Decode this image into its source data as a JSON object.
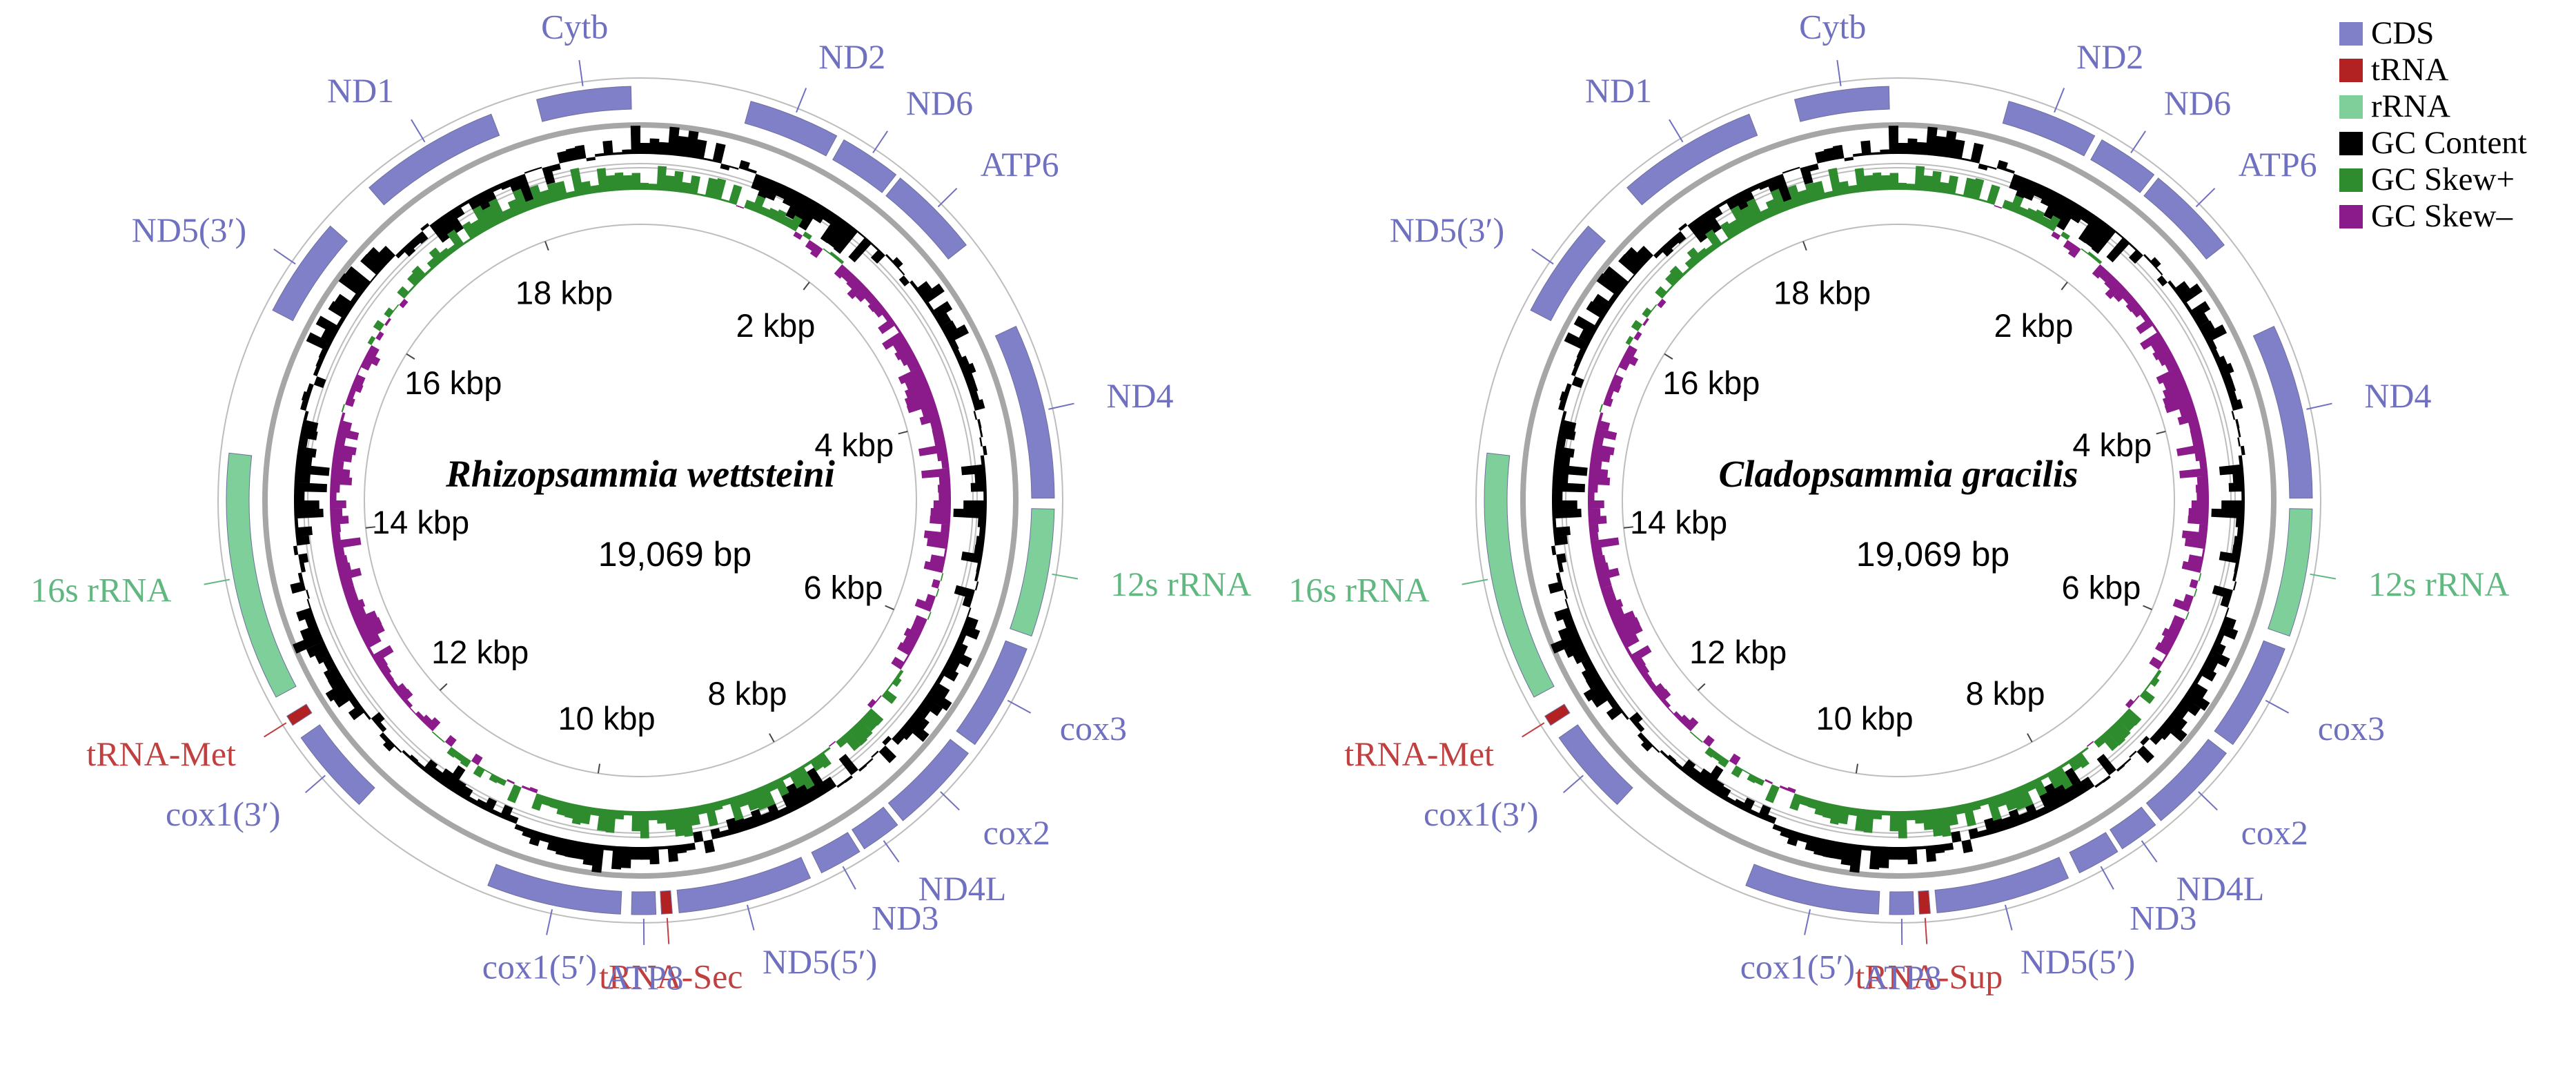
{
  "colors": {
    "cds": "#8080c8",
    "trna": "#b22222",
    "rrna": "#7fcf9a",
    "gc_content": "#000000",
    "gc_skew_pos": "#2e8b2e",
    "gc_skew_neg": "#8b1a8b",
    "ring": "#a6a6a6",
    "label_cds": "#7070c0",
    "label_trna": "#c04040",
    "label_rrna": "#60b880"
  },
  "legend": [
    {
      "label": "CDS",
      "color_key": "cds"
    },
    {
      "label": "tRNA",
      "color_key": "trna"
    },
    {
      "label": "rRNA",
      "color_key": "rrna"
    },
    {
      "label": "GC Content",
      "color_key": "gc_content"
    },
    {
      "label": "GC Skew+",
      "color_key": "gc_skew_pos"
    },
    {
      "label": "GC Skew–",
      "color_key": "gc_skew_neg"
    }
  ],
  "tick_labels": [
    "2 kbp",
    "4 kbp",
    "6 kbp",
    "8 kbp",
    "10 kbp",
    "12 kbp",
    "14 kbp",
    "16 kbp",
    "18 kbp"
  ],
  "maps": [
    {
      "species": "Rhizopsammia wettsteini",
      "length": "19,069 bp",
      "genes": [
        {
          "name": "Cytb",
          "type": "cds",
          "start": 18300,
          "end": 19000
        },
        {
          "name": "ND2",
          "type": "cds",
          "start": 820,
          "end": 1500
        },
        {
          "name": "ND6",
          "type": "cds",
          "start": 1560,
          "end": 2020
        },
        {
          "name": "ATP6",
          "type": "cds",
          "start": 2060,
          "end": 2750
        },
        {
          "name": "ND4",
          "type": "cds",
          "start": 3450,
          "end": 4750
        },
        {
          "name": "12s rRNA",
          "type": "rrna",
          "start": 4830,
          "end": 5780
        },
        {
          "name": "cox3",
          "type": "cds",
          "start": 5880,
          "end": 6680
        },
        {
          "name": "cox2",
          "type": "cds",
          "start": 6760,
          "end": 7450
        },
        {
          "name": "ND4L",
          "type": "cds",
          "start": 7500,
          "end": 7800
        },
        {
          "name": "ND3",
          "type": "cds",
          "start": 7840,
          "end": 8160
        },
        {
          "name": "ND5(5′)",
          "type": "cds",
          "start": 8250,
          "end": 9250
        },
        {
          "name": "tRNA-Sec",
          "type": "trna",
          "start": 9300,
          "end": 9380
        },
        {
          "name": "ATP8",
          "type": "cds",
          "start": 9420,
          "end": 9600
        },
        {
          "name": "cox1(5′)",
          "type": "cds",
          "start": 9680,
          "end": 10680
        },
        {
          "name": "cox1(3′)",
          "type": "cds",
          "start": 11800,
          "end": 12450
        },
        {
          "name": "tRNA-Met",
          "type": "trna",
          "start": 12560,
          "end": 12640
        },
        {
          "name": "16s rRNA",
          "type": "rrna",
          "start": 12800,
          "end": 14650
        },
        {
          "name": "ND5(3′)",
          "type": "cds",
          "start": 15750,
          "end": 16500
        },
        {
          "name": "ND1",
          "type": "cds",
          "start": 16900,
          "end": 17950
        }
      ]
    },
    {
      "species": "Cladopsammia gracilis",
      "length": "19,069 bp",
      "genes": [
        {
          "name": "Cytb",
          "type": "cds",
          "start": 18300,
          "end": 19000
        },
        {
          "name": "ND2",
          "type": "cds",
          "start": 820,
          "end": 1500
        },
        {
          "name": "ND6",
          "type": "cds",
          "start": 1560,
          "end": 2020
        },
        {
          "name": "ATP6",
          "type": "cds",
          "start": 2060,
          "end": 2750
        },
        {
          "name": "ND4",
          "type": "cds",
          "start": 3450,
          "end": 4750
        },
        {
          "name": "12s rRNA",
          "type": "rrna",
          "start": 4830,
          "end": 5780
        },
        {
          "name": "cox3",
          "type": "cds",
          "start": 5880,
          "end": 6680
        },
        {
          "name": "cox2",
          "type": "cds",
          "start": 6760,
          "end": 7450
        },
        {
          "name": "ND4L",
          "type": "cds",
          "start": 7500,
          "end": 7800
        },
        {
          "name": "ND3",
          "type": "cds",
          "start": 7840,
          "end": 8160
        },
        {
          "name": "ND5(5′)",
          "type": "cds",
          "start": 8250,
          "end": 9250
        },
        {
          "name": "tRNA-Sup",
          "type": "trna",
          "start": 9300,
          "end": 9380
        },
        {
          "name": "ATP8",
          "type": "cds",
          "start": 9420,
          "end": 9600
        },
        {
          "name": "cox1(5′)",
          "type": "cds",
          "start": 9680,
          "end": 10680
        },
        {
          "name": "cox1(3′)",
          "type": "cds",
          "start": 11800,
          "end": 12450
        },
        {
          "name": "tRNA-Met",
          "type": "trna",
          "start": 12560,
          "end": 12640
        },
        {
          "name": "16s rRNA",
          "type": "rrna",
          "start": 12800,
          "end": 14650
        },
        {
          "name": "ND5(3′)",
          "type": "cds",
          "start": 15750,
          "end": 16500
        },
        {
          "name": "ND1",
          "type": "cds",
          "start": 16900,
          "end": 17950
        }
      ]
    }
  ]
}
